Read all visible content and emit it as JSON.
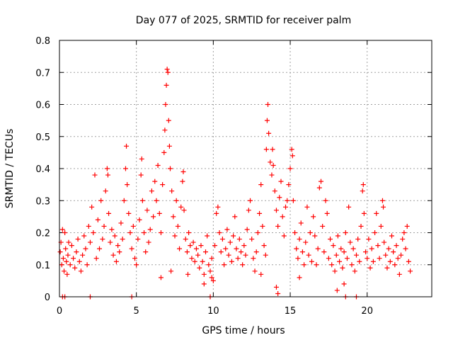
{
  "chart_data": {
    "type": "scatter",
    "title": "Day 077 of 2025, SRMTID for receiver palm",
    "xlabel": "GPS time / hours",
    "ylabel": "SRMTID / TECUs",
    "xlim": [
      0,
      24.2
    ],
    "ylim": [
      0,
      0.8
    ],
    "xticks": [
      0,
      5,
      10,
      15,
      20
    ],
    "xtick_labels": [
      "0",
      "5",
      "10",
      "15",
      "20"
    ],
    "yticks": [
      0,
      0.1,
      0.2,
      0.3,
      0.4,
      0.5,
      0.6,
      0.7,
      0.8
    ],
    "ytick_labels": [
      "0",
      "0.1",
      "0.2",
      "0.3",
      "0.4",
      "0.5",
      "0.6",
      "0.7",
      "0.8"
    ],
    "grid": true,
    "marker": "plus",
    "color": "#ff0000",
    "series": [
      {
        "name": "SRMTID",
        "points": [
          [
            0.05,
            0.14
          ],
          [
            0.1,
            0.17
          ],
          [
            0.15,
            0.1
          ],
          [
            0.2,
            0.21
          ],
          [
            0.25,
            0.12
          ],
          [
            0.3,
            0.08
          ],
          [
            0.35,
            0.2
          ],
          [
            0.4,
            0.15
          ],
          [
            0.45,
            0.11
          ],
          [
            0.5,
            0.07
          ],
          [
            0.55,
            0.13
          ],
          [
            0.6,
            0.17
          ],
          [
            0.7,
            0.1
          ],
          [
            0.8,
            0.16
          ],
          [
            0.9,
            0.12
          ],
          [
            1.0,
            0.09
          ],
          [
            1.1,
            0.14
          ],
          [
            1.2,
            0.18
          ],
          [
            1.3,
            0.11
          ],
          [
            1.4,
            0.08
          ],
          [
            1.5,
            0.13
          ],
          [
            1.6,
            0.19
          ],
          [
            1.7,
            0.15
          ],
          [
            1.8,
            0.1
          ],
          [
            1.9,
            0.22
          ],
          [
            0.2,
            0.0
          ],
          [
            0.35,
            0.0
          ],
          [
            2.0,
            0.0
          ],
          [
            4.7,
            0.0
          ],
          [
            9.8,
            0.0
          ],
          [
            18.6,
            0.0
          ],
          [
            19.3,
            0.0
          ],
          [
            2.0,
            0.17
          ],
          [
            2.1,
            0.28
          ],
          [
            2.2,
            0.2
          ],
          [
            2.3,
            0.38
          ],
          [
            2.4,
            0.12
          ],
          [
            2.5,
            0.24
          ],
          [
            2.6,
            0.15
          ],
          [
            2.7,
            0.3
          ],
          [
            2.8,
            0.18
          ],
          [
            2.9,
            0.22
          ],
          [
            3.0,
            0.33
          ],
          [
            3.1,
            0.4
          ],
          [
            3.15,
            0.38
          ],
          [
            3.2,
            0.26
          ],
          [
            3.3,
            0.17
          ],
          [
            3.4,
            0.21
          ],
          [
            3.5,
            0.13
          ],
          [
            3.6,
            0.19
          ],
          [
            3.7,
            0.11
          ],
          [
            3.8,
            0.16
          ],
          [
            3.9,
            0.14
          ],
          [
            4.0,
            0.23
          ],
          [
            4.1,
            0.18
          ],
          [
            4.2,
            0.3
          ],
          [
            4.3,
            0.4
          ],
          [
            4.35,
            0.47
          ],
          [
            4.4,
            0.35
          ],
          [
            4.5,
            0.26
          ],
          [
            4.6,
            0.2
          ],
          [
            4.7,
            0.15
          ],
          [
            4.8,
            0.22
          ],
          [
            4.9,
            0.12
          ],
          [
            5.0,
            0.1
          ],
          [
            5.1,
            0.18
          ],
          [
            5.2,
            0.24
          ],
          [
            5.3,
            0.38
          ],
          [
            5.35,
            0.43
          ],
          [
            5.4,
            0.3
          ],
          [
            5.5,
            0.2
          ],
          [
            5.6,
            0.14
          ],
          [
            5.7,
            0.27
          ],
          [
            5.8,
            0.17
          ],
          [
            5.9,
            0.21
          ],
          [
            6.0,
            0.33
          ],
          [
            6.1,
            0.25
          ],
          [
            6.2,
            0.36
          ],
          [
            6.3,
            0.3
          ],
          [
            6.4,
            0.41
          ],
          [
            6.5,
            0.26
          ],
          [
            6.6,
            0.2
          ],
          [
            6.7,
            0.35
          ],
          [
            6.8,
            0.45
          ],
          [
            6.85,
            0.52
          ],
          [
            6.9,
            0.6
          ],
          [
            6.95,
            0.66
          ],
          [
            7.0,
            0.71
          ],
          [
            7.05,
            0.7
          ],
          [
            7.1,
            0.55
          ],
          [
            7.15,
            0.47
          ],
          [
            7.2,
            0.4
          ],
          [
            7.3,
            0.33
          ],
          [
            7.4,
            0.25
          ],
          [
            7.5,
            0.19
          ],
          [
            7.6,
            0.3
          ],
          [
            7.7,
            0.22
          ],
          [
            7.8,
            0.15
          ],
          [
            7.9,
            0.28
          ],
          [
            8.0,
            0.36
          ],
          [
            8.05,
            0.39
          ],
          [
            8.1,
            0.27
          ],
          [
            8.2,
            0.18
          ],
          [
            8.3,
            0.14
          ],
          [
            8.4,
            0.2
          ],
          [
            8.5,
            0.16
          ],
          [
            8.6,
            0.12
          ],
          [
            8.7,
            0.17
          ],
          [
            8.8,
            0.11
          ],
          [
            8.9,
            0.15
          ],
          [
            6.6,
            0.06
          ],
          [
            7.25,
            0.08
          ],
          [
            8.35,
            0.07
          ],
          [
            9.0,
            0.13
          ],
          [
            9.1,
            0.09
          ],
          [
            9.2,
            0.16
          ],
          [
            9.3,
            0.11
          ],
          [
            9.4,
            0.07
          ],
          [
            9.5,
            0.14
          ],
          [
            9.6,
            0.19
          ],
          [
            9.7,
            0.1
          ],
          [
            9.8,
            0.08
          ],
          [
            9.9,
            0.12
          ],
          [
            10.0,
            0.05
          ],
          [
            10.1,
            0.16
          ],
          [
            10.2,
            0.26
          ],
          [
            10.3,
            0.28
          ],
          [
            10.4,
            0.2
          ],
          [
            10.5,
            0.14
          ],
          [
            10.6,
            0.18
          ],
          [
            10.7,
            0.1
          ],
          [
            10.8,
            0.15
          ],
          [
            10.9,
            0.21
          ],
          [
            11.0,
            0.13
          ],
          [
            11.1,
            0.17
          ],
          [
            11.2,
            0.11
          ],
          [
            11.3,
            0.19
          ],
          [
            11.4,
            0.25
          ],
          [
            11.5,
            0.15
          ],
          [
            11.6,
            0.12
          ],
          [
            11.7,
            0.18
          ],
          [
            11.8,
            0.14
          ],
          [
            11.9,
            0.1
          ],
          [
            9.4,
            0.04
          ],
          [
            9.9,
            0.06
          ],
          [
            12.0,
            0.16
          ],
          [
            12.1,
            0.13
          ],
          [
            12.2,
            0.21
          ],
          [
            12.3,
            0.27
          ],
          [
            12.4,
            0.3
          ],
          [
            12.5,
            0.18
          ],
          [
            12.6,
            0.12
          ],
          [
            12.7,
            0.08
          ],
          [
            12.8,
            0.14
          ],
          [
            12.9,
            0.2
          ],
          [
            13.0,
            0.26
          ],
          [
            13.1,
            0.35
          ],
          [
            13.2,
            0.22
          ],
          [
            13.3,
            0.16
          ],
          [
            13.4,
            0.13
          ],
          [
            13.45,
            0.46
          ],
          [
            13.5,
            0.55
          ],
          [
            13.55,
            0.6
          ],
          [
            13.6,
            0.51
          ],
          [
            13.7,
            0.42
          ],
          [
            13.8,
            0.38
          ],
          [
            13.85,
            0.46
          ],
          [
            13.9,
            0.41
          ],
          [
            14.0,
            0.33
          ],
          [
            14.1,
            0.27
          ],
          [
            14.2,
            0.22
          ],
          [
            14.3,
            0.31
          ],
          [
            14.4,
            0.36
          ],
          [
            14.5,
            0.25
          ],
          [
            14.6,
            0.19
          ],
          [
            14.7,
            0.28
          ],
          [
            14.8,
            0.3
          ],
          [
            14.9,
            0.35
          ],
          [
            15.0,
            0.4
          ],
          [
            15.1,
            0.46
          ],
          [
            15.15,
            0.44
          ],
          [
            15.2,
            0.3
          ],
          [
            15.3,
            0.2
          ],
          [
            15.4,
            0.15
          ],
          [
            15.5,
            0.12
          ],
          [
            15.6,
            0.18
          ],
          [
            15.7,
            0.23
          ],
          [
            15.8,
            0.14
          ],
          [
            15.9,
            0.1
          ],
          [
            13.1,
            0.07
          ],
          [
            14.1,
            0.03
          ],
          [
            14.2,
            0.01
          ],
          [
            15.6,
            0.06
          ],
          [
            16.0,
            0.17
          ],
          [
            16.1,
            0.28
          ],
          [
            16.2,
            0.13
          ],
          [
            16.3,
            0.2
          ],
          [
            16.4,
            0.11
          ],
          [
            16.5,
            0.25
          ],
          [
            16.6,
            0.19
          ],
          [
            16.7,
            0.1
          ],
          [
            16.8,
            0.15
          ],
          [
            16.9,
            0.34
          ],
          [
            17.0,
            0.36
          ],
          [
            17.1,
            0.22
          ],
          [
            17.2,
            0.14
          ],
          [
            17.3,
            0.3
          ],
          [
            17.4,
            0.26
          ],
          [
            17.5,
            0.12
          ],
          [
            17.6,
            0.18
          ],
          [
            17.7,
            0.1
          ],
          [
            17.8,
            0.16
          ],
          [
            17.9,
            0.08
          ],
          [
            18.0,
            0.13
          ],
          [
            18.1,
            0.19
          ],
          [
            18.2,
            0.11
          ],
          [
            18.3,
            0.15
          ],
          [
            18.4,
            0.09
          ],
          [
            18.5,
            0.14
          ],
          [
            18.6,
            0.2
          ],
          [
            18.7,
            0.12
          ],
          [
            18.8,
            0.28
          ],
          [
            18.9,
            0.17
          ],
          [
            19.0,
            0.1
          ],
          [
            19.1,
            0.15
          ],
          [
            19.2,
            0.08
          ],
          [
            19.3,
            0.13
          ],
          [
            19.4,
            0.18
          ],
          [
            19.5,
            0.11
          ],
          [
            19.6,
            0.22
          ],
          [
            19.7,
            0.33
          ],
          [
            19.75,
            0.35
          ],
          [
            19.8,
            0.26
          ],
          [
            19.9,
            0.14
          ],
          [
            18.05,
            0.02
          ],
          [
            18.5,
            0.04
          ],
          [
            20.0,
            0.12
          ],
          [
            20.1,
            0.18
          ],
          [
            20.2,
            0.09
          ],
          [
            20.3,
            0.15
          ],
          [
            20.4,
            0.11
          ],
          [
            20.5,
            0.2
          ],
          [
            20.6,
            0.26
          ],
          [
            20.7,
            0.16
          ],
          [
            20.8,
            0.12
          ],
          [
            20.9,
            0.22
          ],
          [
            21.0,
            0.3
          ],
          [
            21.05,
            0.28
          ],
          [
            21.1,
            0.17
          ],
          [
            21.2,
            0.13
          ],
          [
            21.3,
            0.09
          ],
          [
            21.4,
            0.15
          ],
          [
            21.5,
            0.11
          ],
          [
            21.6,
            0.19
          ],
          [
            21.7,
            0.14
          ],
          [
            21.8,
            0.1
          ],
          [
            21.9,
            0.16
          ],
          [
            22.0,
            0.12
          ],
          [
            22.1,
            0.07
          ],
          [
            22.2,
            0.13
          ],
          [
            22.3,
            0.18
          ],
          [
            22.4,
            0.2
          ],
          [
            22.5,
            0.15
          ],
          [
            22.6,
            0.22
          ],
          [
            22.7,
            0.11
          ],
          [
            22.8,
            0.08
          ]
        ]
      }
    ]
  }
}
